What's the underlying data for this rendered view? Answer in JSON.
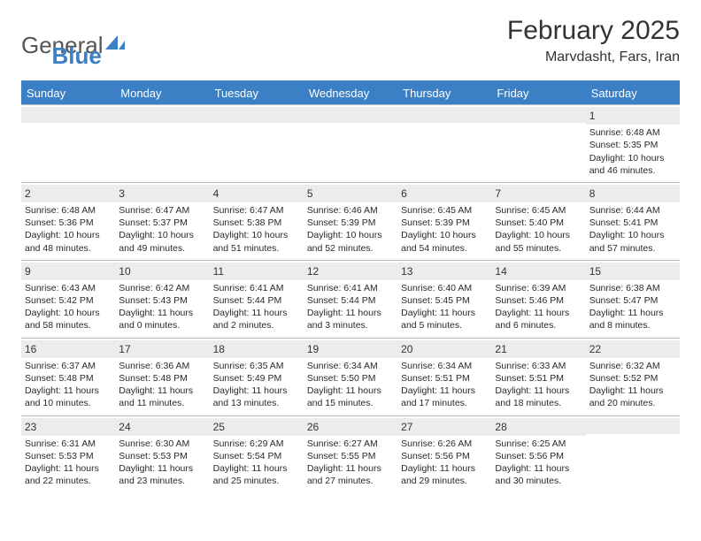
{
  "logo": {
    "text_a": "General",
    "text_b": "Blue"
  },
  "title": "February 2025",
  "location": "Marvdasht, Fars, Iran",
  "weekdays": [
    "Sunday",
    "Monday",
    "Tuesday",
    "Wednesday",
    "Thursday",
    "Friday",
    "Saturday"
  ],
  "colors": {
    "header_blue": "#3b7fc4",
    "row_grey": "#ececec",
    "border": "#bbbbbb",
    "text": "#333333"
  },
  "weeks": [
    [
      {
        "n": "",
        "lines": []
      },
      {
        "n": "",
        "lines": []
      },
      {
        "n": "",
        "lines": []
      },
      {
        "n": "",
        "lines": []
      },
      {
        "n": "",
        "lines": []
      },
      {
        "n": "",
        "lines": []
      },
      {
        "n": "1",
        "lines": [
          "Sunrise: 6:48 AM",
          "Sunset: 5:35 PM",
          "Daylight: 10 hours and 46 minutes."
        ]
      }
    ],
    [
      {
        "n": "2",
        "lines": [
          "Sunrise: 6:48 AM",
          "Sunset: 5:36 PM",
          "Daylight: 10 hours and 48 minutes."
        ]
      },
      {
        "n": "3",
        "lines": [
          "Sunrise: 6:47 AM",
          "Sunset: 5:37 PM",
          "Daylight: 10 hours and 49 minutes."
        ]
      },
      {
        "n": "4",
        "lines": [
          "Sunrise: 6:47 AM",
          "Sunset: 5:38 PM",
          "Daylight: 10 hours and 51 minutes."
        ]
      },
      {
        "n": "5",
        "lines": [
          "Sunrise: 6:46 AM",
          "Sunset: 5:39 PM",
          "Daylight: 10 hours and 52 minutes."
        ]
      },
      {
        "n": "6",
        "lines": [
          "Sunrise: 6:45 AM",
          "Sunset: 5:39 PM",
          "Daylight: 10 hours and 54 minutes."
        ]
      },
      {
        "n": "7",
        "lines": [
          "Sunrise: 6:45 AM",
          "Sunset: 5:40 PM",
          "Daylight: 10 hours and 55 minutes."
        ]
      },
      {
        "n": "8",
        "lines": [
          "Sunrise: 6:44 AM",
          "Sunset: 5:41 PM",
          "Daylight: 10 hours and 57 minutes."
        ]
      }
    ],
    [
      {
        "n": "9",
        "lines": [
          "Sunrise: 6:43 AM",
          "Sunset: 5:42 PM",
          "Daylight: 10 hours and 58 minutes."
        ]
      },
      {
        "n": "10",
        "lines": [
          "Sunrise: 6:42 AM",
          "Sunset: 5:43 PM",
          "Daylight: 11 hours and 0 minutes."
        ]
      },
      {
        "n": "11",
        "lines": [
          "Sunrise: 6:41 AM",
          "Sunset: 5:44 PM",
          "Daylight: 11 hours and 2 minutes."
        ]
      },
      {
        "n": "12",
        "lines": [
          "Sunrise: 6:41 AM",
          "Sunset: 5:44 PM",
          "Daylight: 11 hours and 3 minutes."
        ]
      },
      {
        "n": "13",
        "lines": [
          "Sunrise: 6:40 AM",
          "Sunset: 5:45 PM",
          "Daylight: 11 hours and 5 minutes."
        ]
      },
      {
        "n": "14",
        "lines": [
          "Sunrise: 6:39 AM",
          "Sunset: 5:46 PM",
          "Daylight: 11 hours and 6 minutes."
        ]
      },
      {
        "n": "15",
        "lines": [
          "Sunrise: 6:38 AM",
          "Sunset: 5:47 PM",
          "Daylight: 11 hours and 8 minutes."
        ]
      }
    ],
    [
      {
        "n": "16",
        "lines": [
          "Sunrise: 6:37 AM",
          "Sunset: 5:48 PM",
          "Daylight: 11 hours and 10 minutes."
        ]
      },
      {
        "n": "17",
        "lines": [
          "Sunrise: 6:36 AM",
          "Sunset: 5:48 PM",
          "Daylight: 11 hours and 11 minutes."
        ]
      },
      {
        "n": "18",
        "lines": [
          "Sunrise: 6:35 AM",
          "Sunset: 5:49 PM",
          "Daylight: 11 hours and 13 minutes."
        ]
      },
      {
        "n": "19",
        "lines": [
          "Sunrise: 6:34 AM",
          "Sunset: 5:50 PM",
          "Daylight: 11 hours and 15 minutes."
        ]
      },
      {
        "n": "20",
        "lines": [
          "Sunrise: 6:34 AM",
          "Sunset: 5:51 PM",
          "Daylight: 11 hours and 17 minutes."
        ]
      },
      {
        "n": "21",
        "lines": [
          "Sunrise: 6:33 AM",
          "Sunset: 5:51 PM",
          "Daylight: 11 hours and 18 minutes."
        ]
      },
      {
        "n": "22",
        "lines": [
          "Sunrise: 6:32 AM",
          "Sunset: 5:52 PM",
          "Daylight: 11 hours and 20 minutes."
        ]
      }
    ],
    [
      {
        "n": "23",
        "lines": [
          "Sunrise: 6:31 AM",
          "Sunset: 5:53 PM",
          "Daylight: 11 hours and 22 minutes."
        ]
      },
      {
        "n": "24",
        "lines": [
          "Sunrise: 6:30 AM",
          "Sunset: 5:53 PM",
          "Daylight: 11 hours and 23 minutes."
        ]
      },
      {
        "n": "25",
        "lines": [
          "Sunrise: 6:29 AM",
          "Sunset: 5:54 PM",
          "Daylight: 11 hours and 25 minutes."
        ]
      },
      {
        "n": "26",
        "lines": [
          "Sunrise: 6:27 AM",
          "Sunset: 5:55 PM",
          "Daylight: 11 hours and 27 minutes."
        ]
      },
      {
        "n": "27",
        "lines": [
          "Sunrise: 6:26 AM",
          "Sunset: 5:56 PM",
          "Daylight: 11 hours and 29 minutes."
        ]
      },
      {
        "n": "28",
        "lines": [
          "Sunrise: 6:25 AM",
          "Sunset: 5:56 PM",
          "Daylight: 11 hours and 30 minutes."
        ]
      },
      {
        "n": "",
        "lines": []
      }
    ]
  ]
}
